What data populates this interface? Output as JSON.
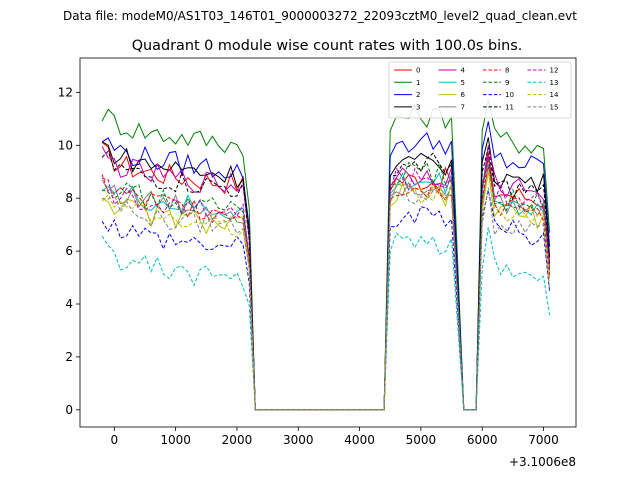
{
  "figure": {
    "suptitle": "Data file: modeM0/AS1T03_146T01_9000003272_22093cztM0_level2_quad_clean.evt",
    "title": "Quadrant 0 module wise count rates with 100.0s bins.",
    "offset_label": "+3.1006e8"
  },
  "chart_data": {
    "type": "line",
    "title": "Quadrant 0 module wise count rates with 100.0s bins.",
    "xlabel": "",
    "ylabel": "",
    "x_offset": "+3.1006e8",
    "xlim": [
      -560,
      7530
    ],
    "ylim": [
      -0.65,
      13.3
    ],
    "xticks": [
      0,
      1000,
      2000,
      3000,
      4000,
      5000,
      6000,
      7000
    ],
    "xtick_labels": [
      "0",
      "1000",
      "2000",
      "3000",
      "4000",
      "5000",
      "6000",
      "7000"
    ],
    "yticks": [
      0,
      2,
      4,
      6,
      8,
      10,
      12
    ],
    "ytick_labels": [
      "0",
      "2",
      "4",
      "6",
      "8",
      "10",
      "12"
    ],
    "legend_position": "top-right",
    "legend_columns": 4,
    "segments": [
      {
        "name": "gti-1",
        "start": -200,
        "count": 24,
        "step": 100
      },
      {
        "name": "gap-1",
        "start": 2200,
        "count": 22,
        "step": 100
      },
      {
        "name": "gti-2",
        "start": 4400,
        "count": 12,
        "step": 100
      },
      {
        "name": "gap-2",
        "start": 5600,
        "count": 4,
        "step": 100
      },
      {
        "name": "gti-3",
        "start": 6000,
        "count": 12,
        "step": 100
      }
    ],
    "series": [
      {
        "name": "0",
        "color": "#ff0000",
        "dashed": false,
        "level1": 9.1,
        "level2": 8.7,
        "level3": 8.3
      },
      {
        "name": "1",
        "color": "#008000",
        "dashed": false,
        "level1": 10.6,
        "level2": 11.1,
        "level3": 10.3
      },
      {
        "name": "2",
        "color": "#0000ff",
        "dashed": false,
        "level1": 9.6,
        "level2": 10.1,
        "level3": 9.5
      },
      {
        "name": "3",
        "color": "#000000",
        "dashed": false,
        "level1": 9.4,
        "level2": 9.3,
        "level3": 8.9
      },
      {
        "name": "4",
        "color": "#bf00bf",
        "dashed": false,
        "level1": 9.0,
        "level2": 8.9,
        "level3": 8.6
      },
      {
        "name": "5",
        "color": "#00bfbf",
        "dashed": false,
        "level1": 8.0,
        "level2": 8.6,
        "level3": 7.9
      },
      {
        "name": "6",
        "color": "#bfbf00",
        "dashed": false,
        "level1": 7.5,
        "level2": 8.1,
        "level3": 7.6
      },
      {
        "name": "7",
        "color": "#808080",
        "dashed": false,
        "level1": 8.0,
        "level2": 8.5,
        "level3": 7.8
      },
      {
        "name": "8",
        "color": "#ff0000",
        "dashed": true,
        "level1": 8.0,
        "level2": 8.4,
        "level3": 7.8
      },
      {
        "name": "9",
        "color": "#008000",
        "dashed": true,
        "level1": 8.1,
        "level2": 8.9,
        "level3": 8.1
      },
      {
        "name": "10",
        "color": "#0000ff",
        "dashed": true,
        "level1": 6.7,
        "level2": 7.3,
        "level3": 6.9
      },
      {
        "name": "11",
        "color": "#000000",
        "dashed": true,
        "level1": 8.9,
        "level2": 9.3,
        "level3": 8.5
      },
      {
        "name": "12",
        "color": "#bf00bf",
        "dashed": true,
        "level1": 7.9,
        "level2": 8.7,
        "level3": 8.2
      },
      {
        "name": "13",
        "color": "#00bfbf",
        "dashed": true,
        "level1": 5.5,
        "level2": 6.3,
        "level3": 5.5
      },
      {
        "name": "14",
        "color": "#bfbf00",
        "dashed": true,
        "level1": 7.5,
        "level2": 8.2,
        "level3": 7.7
      },
      {
        "name": "15",
        "color": "#808080",
        "dashed": true,
        "level1": 7.4,
        "level2": 8.2,
        "level3": 7.0
      }
    ]
  }
}
